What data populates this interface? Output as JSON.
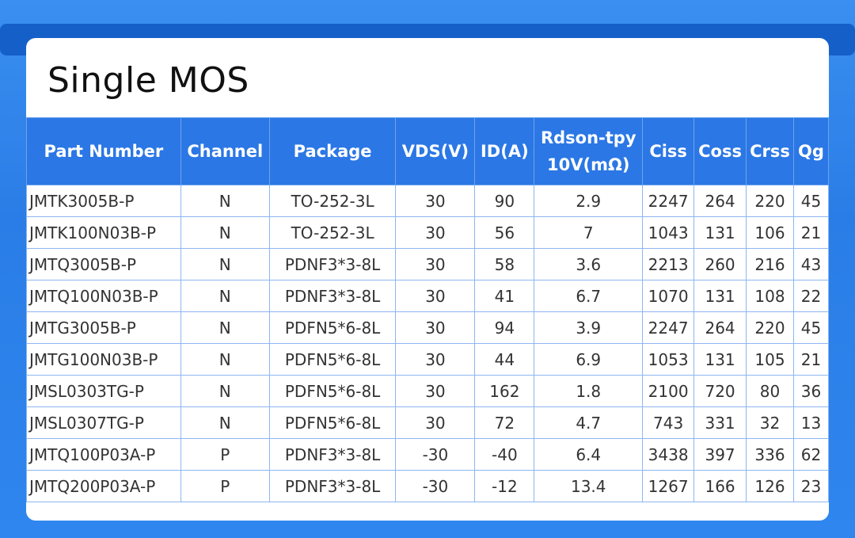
{
  "title": "Single MOS",
  "table": {
    "headers": [
      "Part Number",
      "Channel",
      "Package",
      "VDS(V)",
      "ID(A)",
      "Rdson-tpy 10V(mΩ)",
      "Ciss",
      "Coss",
      "Crss",
      "Qg"
    ],
    "rows": [
      [
        "JMTK3005B-P",
        "N",
        "TO-252-3L",
        "30",
        "90",
        "2.9",
        "2247",
        "264",
        "220",
        "45"
      ],
      [
        "JMTK100N03B-P",
        "N",
        "TO-252-3L",
        "30",
        "56",
        "7",
        "1043",
        "131",
        "106",
        "21"
      ],
      [
        "JMTQ3005B-P",
        "N",
        "PDNF3*3-8L",
        "30",
        "58",
        "3.6",
        "2213",
        "260",
        "216",
        "43"
      ],
      [
        "JMTQ100N03B-P",
        "N",
        "PDNF3*3-8L",
        "30",
        "41",
        "6.7",
        "1070",
        "131",
        "108",
        "22"
      ],
      [
        "JMTG3005B-P",
        "N",
        "PDFN5*6-8L",
        "30",
        "94",
        "3.9",
        "2247",
        "264",
        "220",
        "45"
      ],
      [
        "JMTG100N03B-P",
        "N",
        "PDFN5*6-8L",
        "30",
        "44",
        "6.9",
        "1053",
        "131",
        "105",
        "21"
      ],
      [
        "JMSL0303TG-P",
        "N",
        "PDFN5*6-8L",
        "30",
        "162",
        "1.8",
        "2100",
        "720",
        "80",
        "36"
      ],
      [
        "JMSL0307TG-P",
        "N",
        "PDFN5*6-8L",
        "30",
        "72",
        "4.7",
        "743",
        "331",
        "32",
        "13"
      ],
      [
        "JMTQ100P03A-P",
        "P",
        "PDNF3*3-8L",
        "-30",
        "-40",
        "6.4",
        "3438",
        "397",
        "336",
        "62"
      ],
      [
        "JMTQ200P03A-P",
        "P",
        "PDNF3*3-8L",
        "-30",
        "-12",
        "13.4",
        "1267",
        "166",
        "126",
        "23"
      ]
    ]
  },
  "colors": {
    "header_bg": "#2b77e5",
    "background": "#2a7de6",
    "grid": "#8db6f2"
  }
}
